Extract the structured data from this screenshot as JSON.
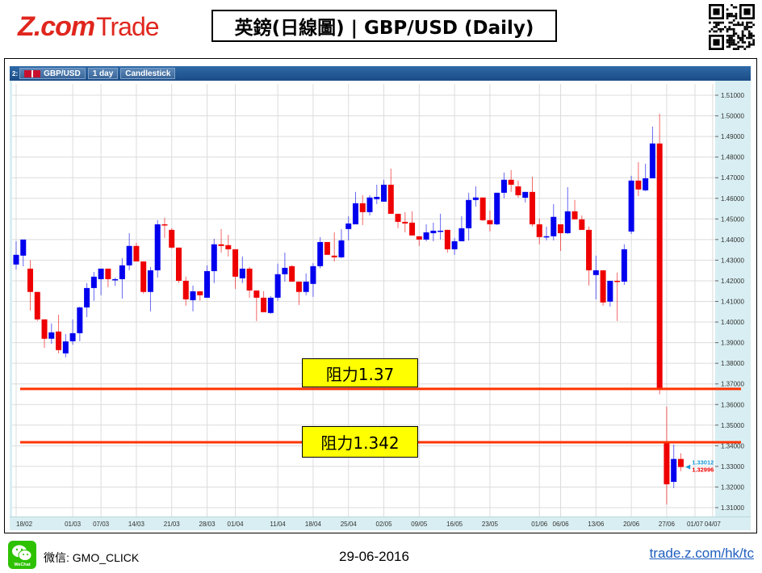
{
  "header": {
    "logo_text": "Z.com Trade",
    "logo_brand": "Z.com",
    "logo_suffix": "Trade",
    "title": "英鎊(日線圖) | GBP/USD (Daily)"
  },
  "toolbar": {
    "index": "2:",
    "symbol": "GBP/USD",
    "interval": "1 day",
    "chart_type": "Candlestick"
  },
  "annotations": [
    {
      "label": "阻力1.37",
      "level": 1.3676
    },
    {
      "label": "阻力1.342",
      "level": 1.3417
    }
  ],
  "footer": {
    "wechat_label": "微信: GMO_CLICK",
    "wechat_icon_text": "WeChat",
    "date": "29-06-2016",
    "link": "trade.z.com/hk/tc"
  },
  "colors": {
    "up": "#0000ee",
    "down": "#ee0000",
    "resistance": "#ff3300",
    "brand": "#e0261d",
    "axis_bg": "#d8eef2",
    "price_bid": "#1a9ad6",
    "price_ask": "#ee0000"
  },
  "chart_data": {
    "type": "candlestick",
    "symbol": "GBP/USD",
    "ylim": [
      1.3065,
      1.5155
    ],
    "y_ticks": [
      "1.31000",
      "1.32000",
      "1.33000",
      "1.34000",
      "1.35000",
      "1.36000",
      "1.37000",
      "1.38000",
      "1.39000",
      "1.40000",
      "1.41000",
      "1.42000",
      "1.43000",
      "1.44000",
      "1.45000",
      "1.46000",
      "1.47000",
      "1.48000",
      "1.49000",
      "1.50000",
      "1.51000"
    ],
    "x_ticks": [
      {
        "label": "18/02",
        "index": 0
      },
      {
        "label": "01/03",
        "index": 8
      },
      {
        "label": "07/03",
        "index": 12
      },
      {
        "label": "14/03",
        "index": 17
      },
      {
        "label": "21/03",
        "index": 22
      },
      {
        "label": "28/03",
        "index": 27
      },
      {
        "label": "01/04",
        "index": 31
      },
      {
        "label": "11/04",
        "index": 37
      },
      {
        "label": "18/04",
        "index": 42
      },
      {
        "label": "25/04",
        "index": 47
      },
      {
        "label": "02/05",
        "index": 52
      },
      {
        "label": "09/05",
        "index": 57
      },
      {
        "label": "16/05",
        "index": 62
      },
      {
        "label": "23/05",
        "index": 67
      },
      {
        "label": "01/06",
        "index": 74
      },
      {
        "label": "06/06",
        "index": 77
      },
      {
        "label": "13/06",
        "index": 82
      },
      {
        "label": "20/06",
        "index": 87
      },
      {
        "label": "27/06",
        "index": 92
      },
      {
        "label": "01/07",
        "index": 96
      },
      {
        "label": "04/07",
        "index": 98.5
      }
    ],
    "current_bid": "1.33012",
    "current_ask": "1.32996",
    "resistance_levels": [
      1.3676,
      1.3417
    ],
    "grid": true,
    "candles_format": [
      "date",
      "open",
      "high",
      "low",
      "close"
    ],
    "candles": [
      [
        "18/02",
        1.4279,
        1.4392,
        1.4255,
        1.4326
      ],
      [
        "19/02",
        1.4322,
        1.44,
        1.427,
        1.44
      ],
      [
        "22/02",
        1.4259,
        1.43,
        1.4056,
        1.4146
      ],
      [
        "23/02",
        1.4146,
        1.4146,
        1.4005,
        1.4013
      ],
      [
        "24/02",
        1.4013,
        1.4013,
        1.3875,
        1.3919
      ],
      [
        "25/02",
        1.3919,
        1.3993,
        1.3895,
        1.395
      ],
      [
        "26/02",
        1.3954,
        1.4036,
        1.3848,
        1.3864
      ],
      [
        "29/02",
        1.3848,
        1.3942,
        1.3829,
        1.3906
      ],
      [
        "01/03",
        1.3907,
        1.4013,
        1.389,
        1.3946
      ],
      [
        "02/03",
        1.3946,
        1.4075,
        1.3907,
        1.4071
      ],
      [
        "03/03",
        1.4071,
        1.4189,
        1.4024,
        1.4165
      ],
      [
        "04/03",
        1.4165,
        1.4243,
        1.4103,
        1.422
      ],
      [
        "07/03",
        1.4208,
        1.4259,
        1.413,
        1.4259
      ],
      [
        "08/03",
        1.4259,
        1.4259,
        1.4169,
        1.4208
      ],
      [
        "09/03",
        1.4205,
        1.4215,
        1.4175,
        1.4208
      ],
      [
        "10/03",
        1.4208,
        1.431,
        1.4114,
        1.4275
      ],
      [
        "11/03",
        1.4275,
        1.4431,
        1.4251,
        1.4369
      ],
      [
        "14/03",
        1.4369,
        1.4384,
        1.4294,
        1.4294
      ],
      [
        "15/03",
        1.4294,
        1.4294,
        1.4138,
        1.4146
      ],
      [
        "16/03",
        1.4146,
        1.4267,
        1.4052,
        1.4251
      ],
      [
        "17/03",
        1.4251,
        1.4494,
        1.4216,
        1.4474
      ],
      [
        "18/03",
        1.4474,
        1.4506,
        1.4408,
        1.447
      ],
      [
        "21/03",
        1.4447,
        1.4455,
        1.4356,
        1.4361
      ],
      [
        "22/03",
        1.4361,
        1.4361,
        1.4189,
        1.42
      ],
      [
        "23/03",
        1.42,
        1.422,
        1.4079,
        1.411
      ],
      [
        "24/03",
        1.4106,
        1.4177,
        1.4052,
        1.4149
      ],
      [
        "25/03",
        1.4149,
        1.415,
        1.4103,
        1.413
      ],
      [
        "28/03",
        1.4118,
        1.4275,
        1.4118,
        1.4247
      ],
      [
        "29/03",
        1.4247,
        1.4404,
        1.4189,
        1.4377
      ],
      [
        "30/03",
        1.4377,
        1.4451,
        1.4337,
        1.4369
      ],
      [
        "31/03",
        1.4373,
        1.4423,
        1.4318,
        1.4353
      ],
      [
        "01/04",
        1.4353,
        1.4353,
        1.4161,
        1.422
      ],
      [
        "04/04",
        1.4212,
        1.4318,
        1.4189,
        1.4259
      ],
      [
        "05/04",
        1.4259,
        1.4267,
        1.4118,
        1.4153
      ],
      [
        "06/04",
        1.4153,
        1.4153,
        1.4005,
        1.4118
      ],
      [
        "07/04",
        1.4118,
        1.415,
        1.4048,
        1.4048
      ],
      [
        "08/04",
        1.4044,
        1.4126,
        1.404,
        1.4118
      ],
      [
        "11/04",
        1.4118,
        1.4283,
        1.4103,
        1.4232
      ],
      [
        "12/04",
        1.4232,
        1.4337,
        1.4196,
        1.4263
      ],
      [
        "13/04",
        1.4271,
        1.4275,
        1.4196,
        1.4196
      ],
      [
        "14/04",
        1.4196,
        1.4196,
        1.4083,
        1.4146
      ],
      [
        "15/04",
        1.4146,
        1.4236,
        1.413,
        1.4196
      ],
      [
        "18/04",
        1.4185,
        1.4286,
        1.4122,
        1.4271
      ],
      [
        "19/04",
        1.4271,
        1.4412,
        1.426,
        1.4388
      ],
      [
        "20/04",
        1.4388,
        1.4388,
        1.4326,
        1.4326
      ],
      [
        "21/04",
        1.4322,
        1.4435,
        1.4294,
        1.4314
      ],
      [
        "22/04",
        1.4314,
        1.445,
        1.431,
        1.4396
      ],
      [
        "25/04",
        1.4451,
        1.4513,
        1.4396,
        1.4478
      ],
      [
        "26/04",
        1.4474,
        1.4631,
        1.4474,
        1.4576
      ],
      [
        "27/04",
        1.4576,
        1.4615,
        1.447,
        1.4533
      ],
      [
        "28/04",
        1.4533,
        1.4615,
        1.4517,
        1.4604
      ],
      [
        "29/04",
        1.4596,
        1.4666,
        1.4572,
        1.4607
      ],
      [
        "02/05",
        1.4584,
        1.469,
        1.4584,
        1.4666
      ],
      [
        "03/05",
        1.4666,
        1.4744,
        1.4525,
        1.4525
      ],
      [
        "04/05",
        1.4525,
        1.4525,
        1.4455,
        1.4486
      ],
      [
        "05/05",
        1.4486,
        1.4533,
        1.4435,
        1.4478
      ],
      [
        "06/05",
        1.4482,
        1.4537,
        1.442,
        1.442
      ],
      [
        "09/05",
        1.4416,
        1.4416,
        1.4369,
        1.44
      ],
      [
        "10/05",
        1.44,
        1.4474,
        1.4392,
        1.4435
      ],
      [
        "11/05",
        1.4431,
        1.4482,
        1.4392,
        1.4443
      ],
      [
        "12/05",
        1.4439,
        1.4525,
        1.44,
        1.4443
      ],
      [
        "13/05",
        1.4447,
        1.4447,
        1.4337,
        1.4353
      ],
      [
        "16/05",
        1.4353,
        1.4408,
        1.4326,
        1.4392
      ],
      [
        "17/05",
        1.4392,
        1.4513,
        1.4392,
        1.4455
      ],
      [
        "18/05",
        1.4455,
        1.4627,
        1.4396,
        1.4592
      ],
      [
        "19/05",
        1.4592,
        1.4658,
        1.456,
        1.4604
      ],
      [
        "20/05",
        1.4604,
        1.4604,
        1.449,
        1.4494
      ],
      [
        "23/05",
        1.4494,
        1.4541,
        1.4439,
        1.4474
      ],
      [
        "24/05",
        1.4474,
        1.4627,
        1.447,
        1.4627
      ],
      [
        "25/05",
        1.4627,
        1.4725,
        1.46,
        1.469
      ],
      [
        "26/05",
        1.469,
        1.4737,
        1.4631,
        1.4666
      ],
      [
        "27/05",
        1.4658,
        1.4686,
        1.4603,
        1.4615
      ],
      [
        "30/05",
        1.4603,
        1.4631,
        1.458,
        1.4631
      ],
      [
        "31/05",
        1.4631,
        1.4705,
        1.4463,
        1.4474
      ],
      [
        "01/06",
        1.4474,
        1.4502,
        1.4377,
        1.4412
      ],
      [
        "02/06",
        1.4412,
        1.4463,
        1.4396,
        1.4416
      ],
      [
        "03/06",
        1.4416,
        1.4572,
        1.4396,
        1.451
      ],
      [
        "06/06",
        1.4474,
        1.4474,
        1.4345,
        1.4431
      ],
      [
        "07/06",
        1.4431,
        1.4654,
        1.4427,
        1.4537
      ],
      [
        "08/06",
        1.4537,
        1.4592,
        1.4498,
        1.4498
      ],
      [
        "09/06",
        1.4498,
        1.4517,
        1.4447,
        1.4447
      ],
      [
        "10/06",
        1.4447,
        1.4463,
        1.4177,
        1.4251
      ],
      [
        "13/06",
        1.4228,
        1.4322,
        1.411,
        1.4251
      ],
      [
        "14/06",
        1.4251,
        1.4251,
        1.4079,
        1.4095
      ],
      [
        "15/06",
        1.4099,
        1.42,
        1.4075,
        1.42
      ],
      [
        "16/06",
        1.42,
        1.424,
        1.4005,
        1.4196
      ],
      [
        "17/06",
        1.4196,
        1.4377,
        1.418,
        1.4353
      ],
      [
        "20/06",
        1.4439,
        1.4709,
        1.4427,
        1.4686
      ],
      [
        "21/06",
        1.4686,
        1.4776,
        1.4611,
        1.4643
      ],
      [
        "22/06",
        1.4639,
        1.4768,
        1.4635,
        1.4697
      ],
      [
        "23/06",
        1.4697,
        1.4948,
        1.4697,
        1.4866
      ],
      [
        "24/06",
        1.4866,
        1.501,
        1.365,
        1.368
      ],
      [
        "27/06",
        1.3418,
        1.359,
        1.3115,
        1.3213
      ],
      [
        "28/06",
        1.3225,
        1.3406,
        1.3195,
        1.3336
      ],
      [
        "29/06",
        1.3336,
        1.3364,
        1.3277,
        1.3297
      ]
    ]
  }
}
